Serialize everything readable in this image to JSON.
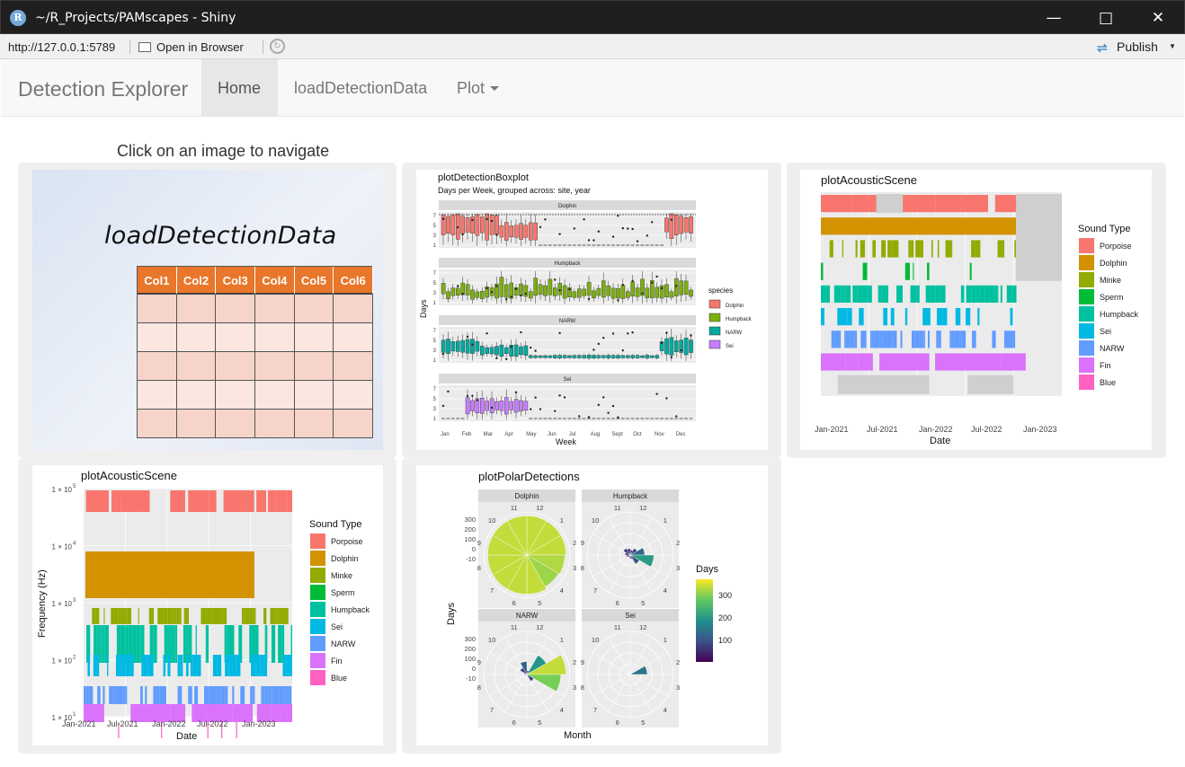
{
  "window": {
    "title": "~/R_Projects/PAMscapes - Shiny",
    "logo": "R",
    "minimize_icon": "minimize-icon",
    "maximize_icon": "maximize-icon",
    "close_icon": "close-icon"
  },
  "toolbar": {
    "url": "http://127.0.0.1:5789",
    "open_browser": "Open in Browser",
    "publish": "Publish"
  },
  "navbar": {
    "brand": "Detection Explorer",
    "tabs": [
      {
        "label": "Home",
        "active": true
      },
      {
        "label": "loadDetectionData",
        "active": false
      },
      {
        "label": "Plot",
        "active": false
      }
    ]
  },
  "main": {
    "heading": "Click on an image to navigate"
  },
  "load_card": {
    "title": "loadDetectionData",
    "columns": [
      "Col1",
      "Col2",
      "Col3",
      "Col4",
      "Col5",
      "Col6"
    ],
    "rows": 5
  },
  "boxplot_card": {
    "title": "plotDetectionBoxplot",
    "subtitle": "Days per Week, grouped across: site, year",
    "facets": [
      "Dolphin",
      "Humpback",
      "NARW",
      "Sei"
    ],
    "ylabel": "Days",
    "xlabel": "Week",
    "yticks": [
      "7",
      "5",
      "3",
      "1"
    ],
    "xticks": [
      "Jan",
      "Feb",
      "Mar",
      "Apr",
      "May",
      "Jun",
      "Jul",
      "Aug",
      "Sept",
      "Oct",
      "Nov",
      "Dec"
    ],
    "legend_title": "species",
    "legend": [
      {
        "name": "Dolphin",
        "color": "#f8766d"
      },
      {
        "name": "Humpback",
        "color": "#7caf10"
      },
      {
        "name": "NARW",
        "color": "#00aaa0"
      },
      {
        "name": "Sei",
        "color": "#c77cff"
      }
    ]
  },
  "scene_card": {
    "title": "plotAcousticScene",
    "xlabel": "Date",
    "xticks": [
      "Jan-2021",
      "Jul-2021",
      "Jan-2022",
      "Jul-2022",
      "Jan-2023"
    ],
    "legend_title": "Sound Type",
    "legend": [
      {
        "name": "Porpoise",
        "color": "#f8766d"
      },
      {
        "name": "Dolphin",
        "color": "#d39200"
      },
      {
        "name": "Minke",
        "color": "#93aa00"
      },
      {
        "name": "Sperm",
        "color": "#00ba38"
      },
      {
        "name": "Humpback",
        "color": "#00c19f"
      },
      {
        "name": "Sei",
        "color": "#00b9e3"
      },
      {
        "name": "NARW",
        "color": "#619cff"
      },
      {
        "name": "Fin",
        "color": "#db72fb"
      },
      {
        "name": "Blue",
        "color": "#ff61c3"
      }
    ]
  },
  "scene2_card": {
    "title": "plotAcousticScene",
    "xlabel": "Date",
    "ylabel": "Frequency (Hz)",
    "yticks": [
      "1 × 10",
      "1 × 10",
      "1 × 10",
      "1 × 10",
      "1 × 10"
    ],
    "ytick_exponents": [
      "5",
      "4",
      "3",
      "2",
      "1"
    ],
    "xticks": [
      "Jan-2021",
      "Jul-2021",
      "Jan-2022",
      "Jul-2022",
      "Jan-2023"
    ],
    "legend_title": "Sound Type"
  },
  "polar_card": {
    "title": "plotPolarDetections",
    "facets": [
      "Dolphin",
      "Humpback",
      "NARW",
      "Sei"
    ],
    "ylabel": "Days",
    "xlabel": "Month",
    "rticks": [
      "300",
      "200",
      "100",
      "0",
      "-10"
    ],
    "months": [
      "1",
      "2",
      "3",
      "4",
      "5",
      "6",
      "7",
      "8",
      "9",
      "10",
      "11",
      "12"
    ],
    "legend_title": "Days",
    "legend_ticks": [
      "300",
      "200",
      "100"
    ]
  }
}
